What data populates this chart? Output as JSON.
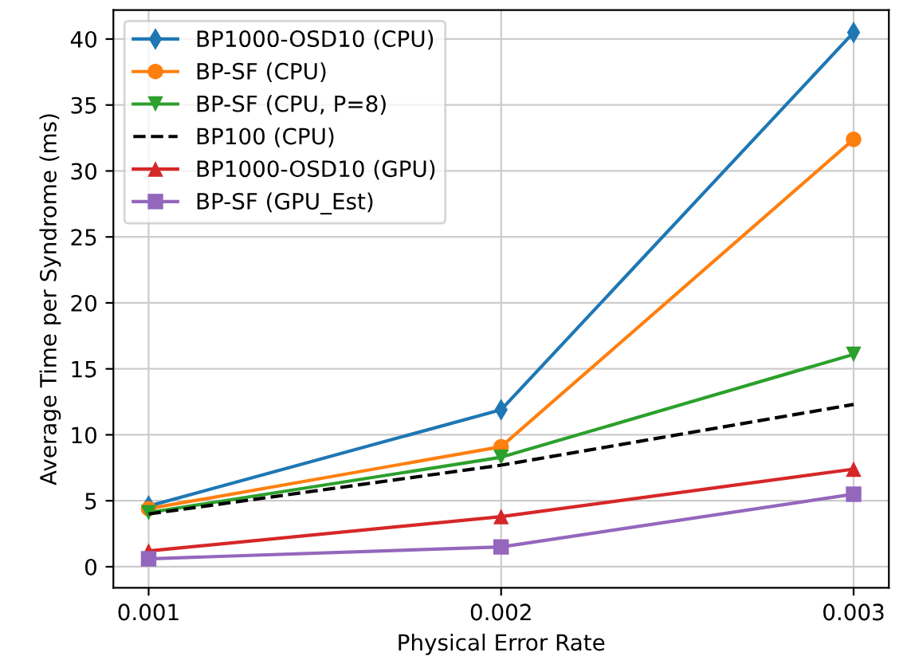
{
  "chart_data": {
    "type": "line",
    "xlabel": "Physical Error Rate",
    "ylabel": "Average Time per Syndrome (ms)",
    "x": [
      0.001,
      0.002,
      0.003
    ],
    "series": [
      {
        "name": "BP1000-OSD10 (CPU)",
        "color": "#1f77b4",
        "marker": "diamond",
        "line_style": "solid",
        "values": [
          4.6,
          11.9,
          40.5
        ]
      },
      {
        "name": "BP-SF (CPU)",
        "color": "#ff7f0e",
        "marker": "circle",
        "line_style": "solid",
        "values": [
          4.4,
          9.1,
          32.4
        ]
      },
      {
        "name": "BP-SF (CPU, P=8)",
        "color": "#2ca02c",
        "marker": "triangle-down",
        "line_style": "solid",
        "values": [
          4.1,
          8.3,
          16.1
        ]
      },
      {
        "name": "BP100 (CPU)",
        "color": "#000000",
        "marker": "none",
        "line_style": "dashed",
        "values": [
          4.0,
          7.7,
          12.3
        ]
      },
      {
        "name": "BP1000-OSD10 (GPU)",
        "color": "#d62728",
        "marker": "triangle",
        "line_style": "solid",
        "values": [
          1.2,
          3.8,
          7.4
        ]
      },
      {
        "name": "BP-SF (GPU_Est)",
        "color": "#9467bd",
        "marker": "square",
        "line_style": "solid",
        "values": [
          0.6,
          1.5,
          5.5
        ]
      }
    ],
    "xlim": [
      0.0009,
      0.0031
    ],
    "xticks": [
      0.001,
      0.002,
      0.003
    ],
    "ylim": [
      -1.6,
      42.2
    ],
    "yticks": [
      0,
      5,
      10,
      15,
      20,
      25,
      30,
      35,
      40
    ],
    "grid": true,
    "legend": "top left"
  }
}
